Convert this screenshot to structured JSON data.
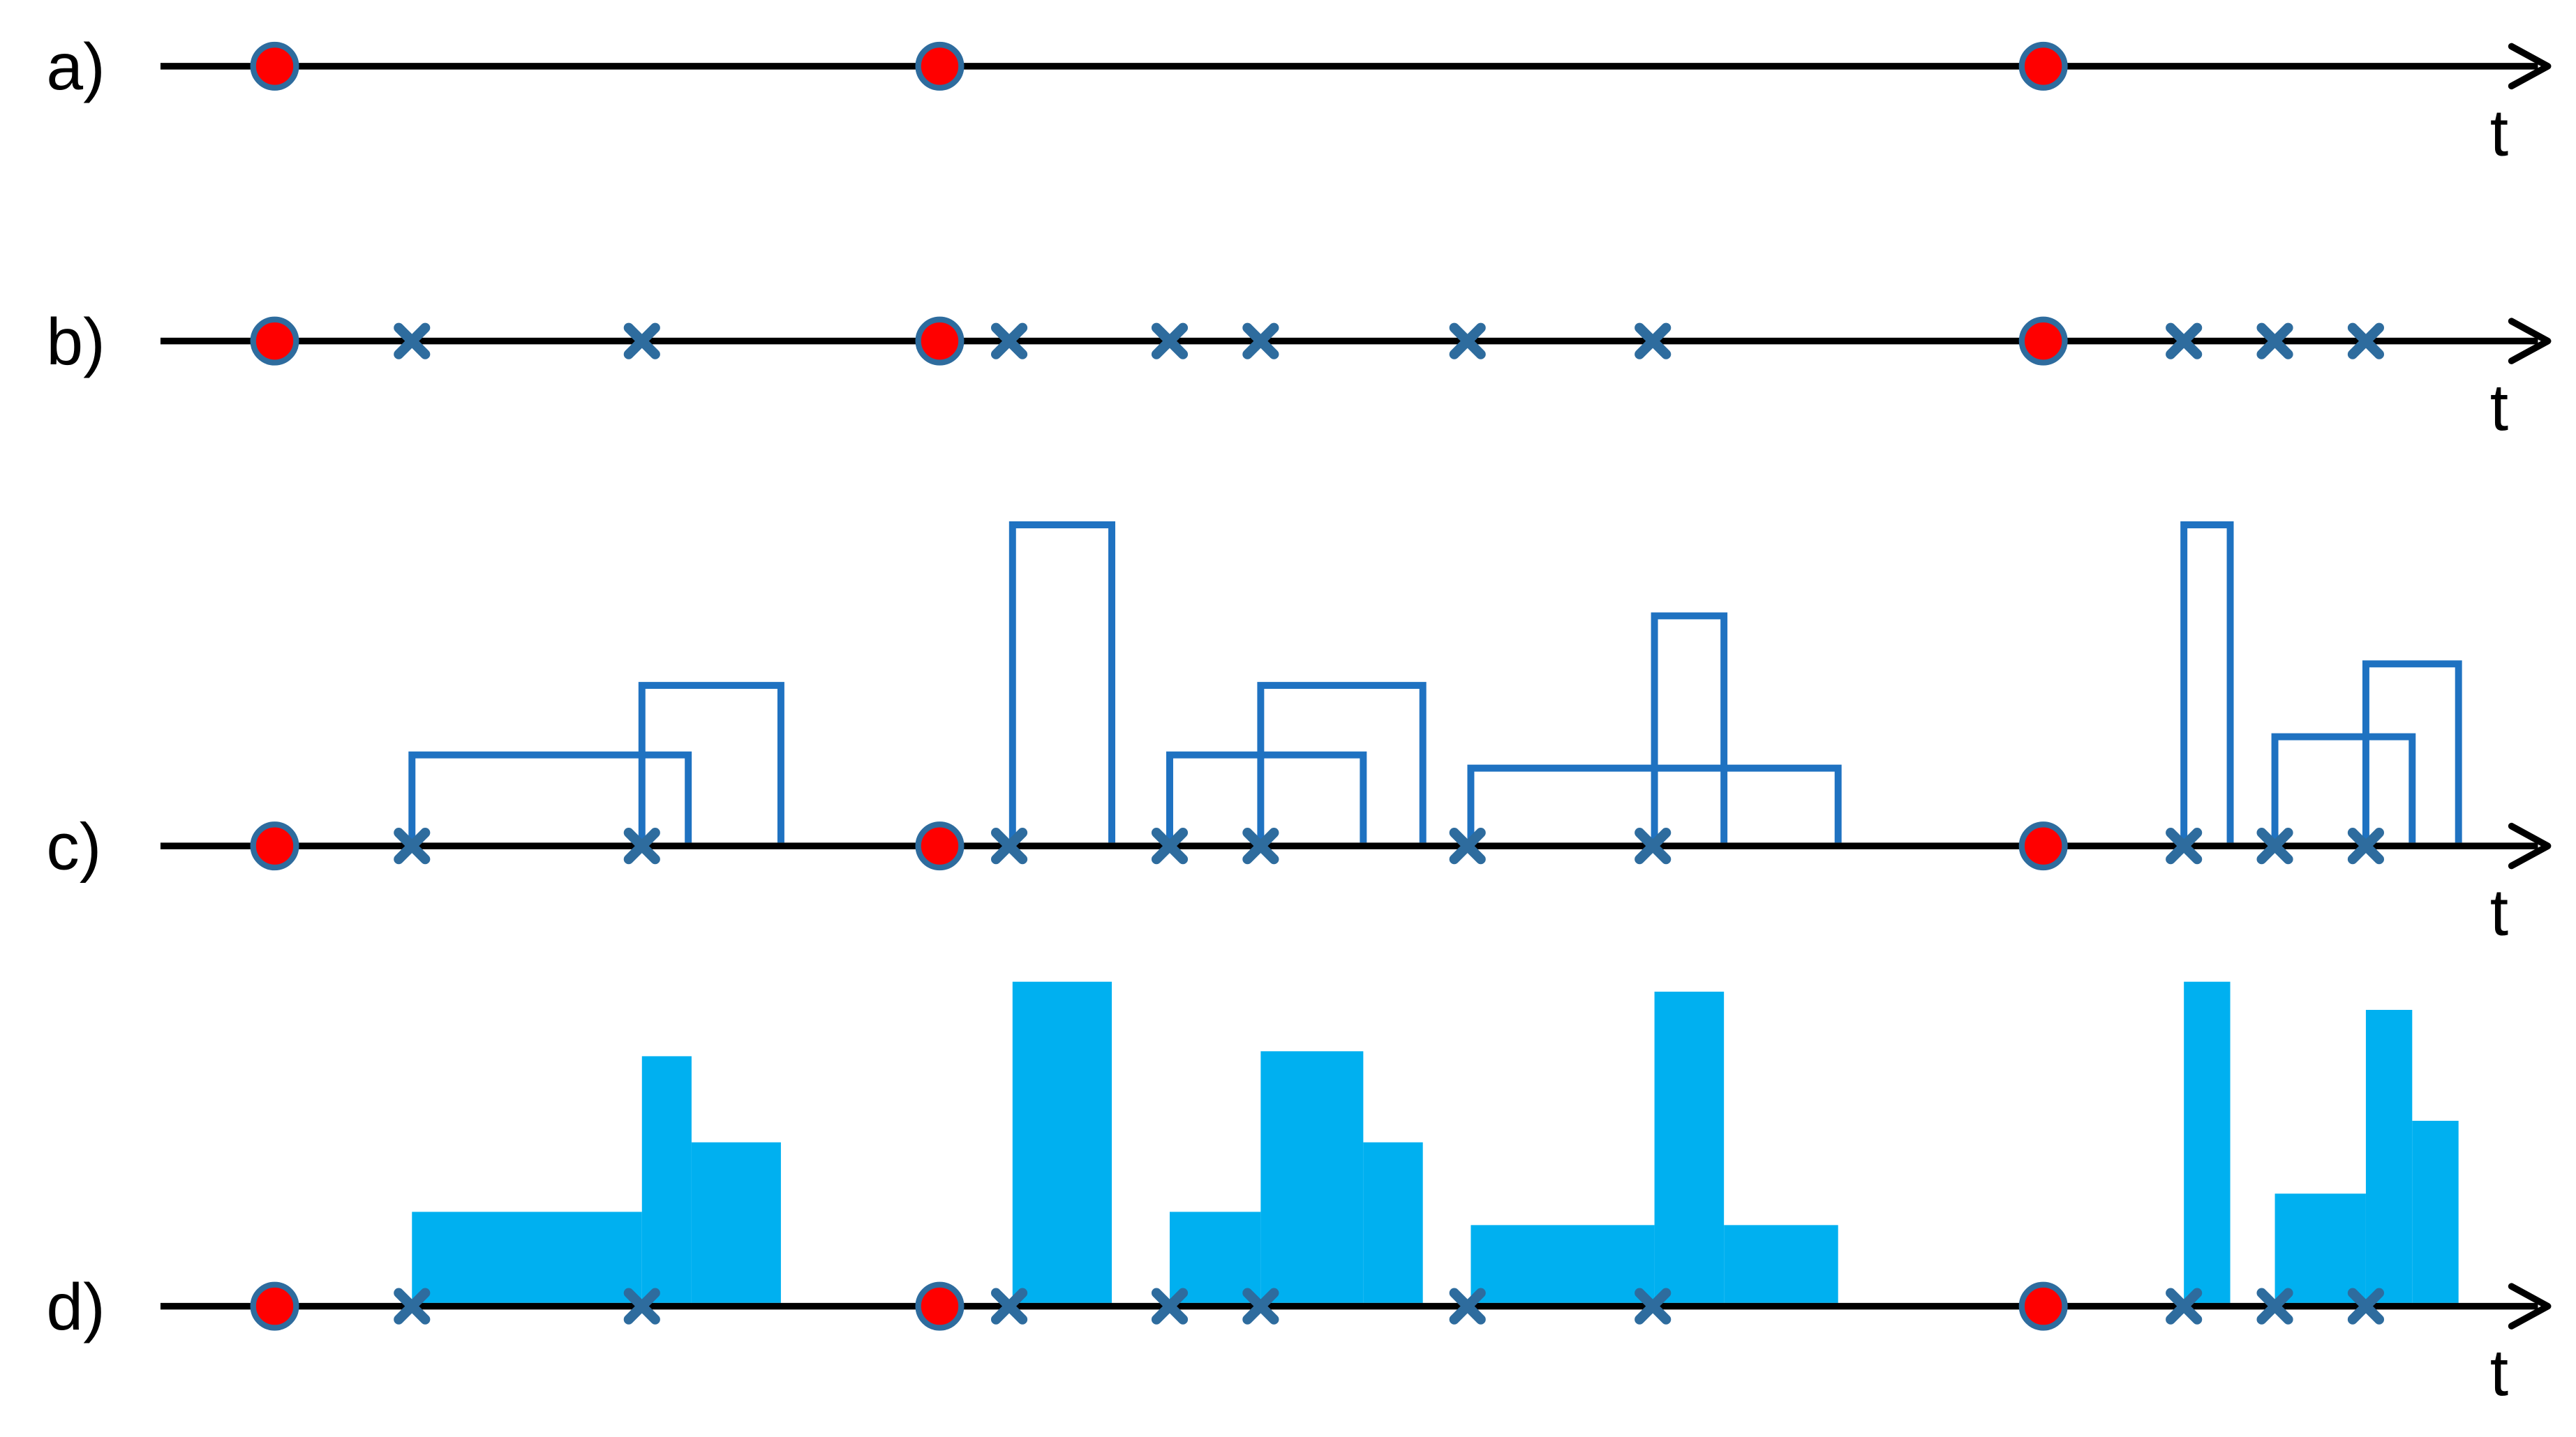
{
  "colors": {
    "axis": "#000000",
    "event_fill": "#ff0000",
    "event_ring": "#2e6c9e",
    "cross": "#2e6c9e",
    "outline": "#1f72c1",
    "filled": "#00b0f0"
  },
  "x_scale_note": "units are original-image columns (0-1557)",
  "panels": [
    {
      "id": "a",
      "label": "a)",
      "axis_label": "t",
      "events": [
        166,
        568,
        1235
      ],
      "crosses": [],
      "outline_boxes": [],
      "filled_steps": []
    },
    {
      "id": "b",
      "label": "b)",
      "axis_label": "t",
      "events": [
        166,
        568,
        1235
      ],
      "crosses": [
        249,
        388,
        610,
        707,
        762,
        887,
        999,
        1320,
        1375,
        1430
      ],
      "outline_boxes": [],
      "filled_steps": []
    },
    {
      "id": "c",
      "label": "c)",
      "axis_label": "t",
      "events": [
        166,
        568,
        1235
      ],
      "crosses": [
        249,
        388,
        610,
        707,
        762,
        887,
        999,
        1320,
        1375,
        1430
      ],
      "outline_boxes": [
        {
          "start": 249,
          "end": 416,
          "height": 55
        },
        {
          "start": 388,
          "end": 472,
          "height": 97
        },
        {
          "start": 612,
          "end": 672,
          "height": 194
        },
        {
          "start": 707,
          "end": 824,
          "height": 55
        },
        {
          "start": 762,
          "end": 860,
          "height": 97
        },
        {
          "start": 889,
          "end": 1111,
          "height": 47
        },
        {
          "start": 1000,
          "end": 1042,
          "height": 139
        },
        {
          "start": 1320,
          "end": 1348,
          "height": 194
        },
        {
          "start": 1375,
          "end": 1458,
          "height": 66
        },
        {
          "start": 1430,
          "end": 1486,
          "height": 110
        }
      ],
      "filled_steps": []
    },
    {
      "id": "d",
      "label": "d)",
      "axis_label": "t",
      "events": [
        166,
        568,
        1235
      ],
      "crosses": [
        249,
        388,
        610,
        707,
        762,
        887,
        999,
        1320,
        1375,
        1430
      ],
      "outline_boxes": [],
      "filled_steps": [
        {
          "start": 249,
          "end": 388,
          "height": 55
        },
        {
          "start": 388,
          "end": 418,
          "height": 149
        },
        {
          "start": 418,
          "end": 472,
          "height": 97
        },
        {
          "start": 612,
          "end": 672,
          "height": 194
        },
        {
          "start": 707,
          "end": 762,
          "height": 55
        },
        {
          "start": 762,
          "end": 824,
          "height": 152
        },
        {
          "start": 824,
          "end": 860,
          "height": 97
        },
        {
          "start": 889,
          "end": 1000,
          "height": 47
        },
        {
          "start": 1000,
          "end": 1042,
          "height": 188
        },
        {
          "start": 1042,
          "end": 1111,
          "height": 47
        },
        {
          "start": 1320,
          "end": 1348,
          "height": 194
        },
        {
          "start": 1375,
          "end": 1430,
          "height": 66
        },
        {
          "start": 1430,
          "end": 1458,
          "height": 177
        },
        {
          "start": 1458,
          "end": 1486,
          "height": 110
        }
      ]
    }
  ]
}
